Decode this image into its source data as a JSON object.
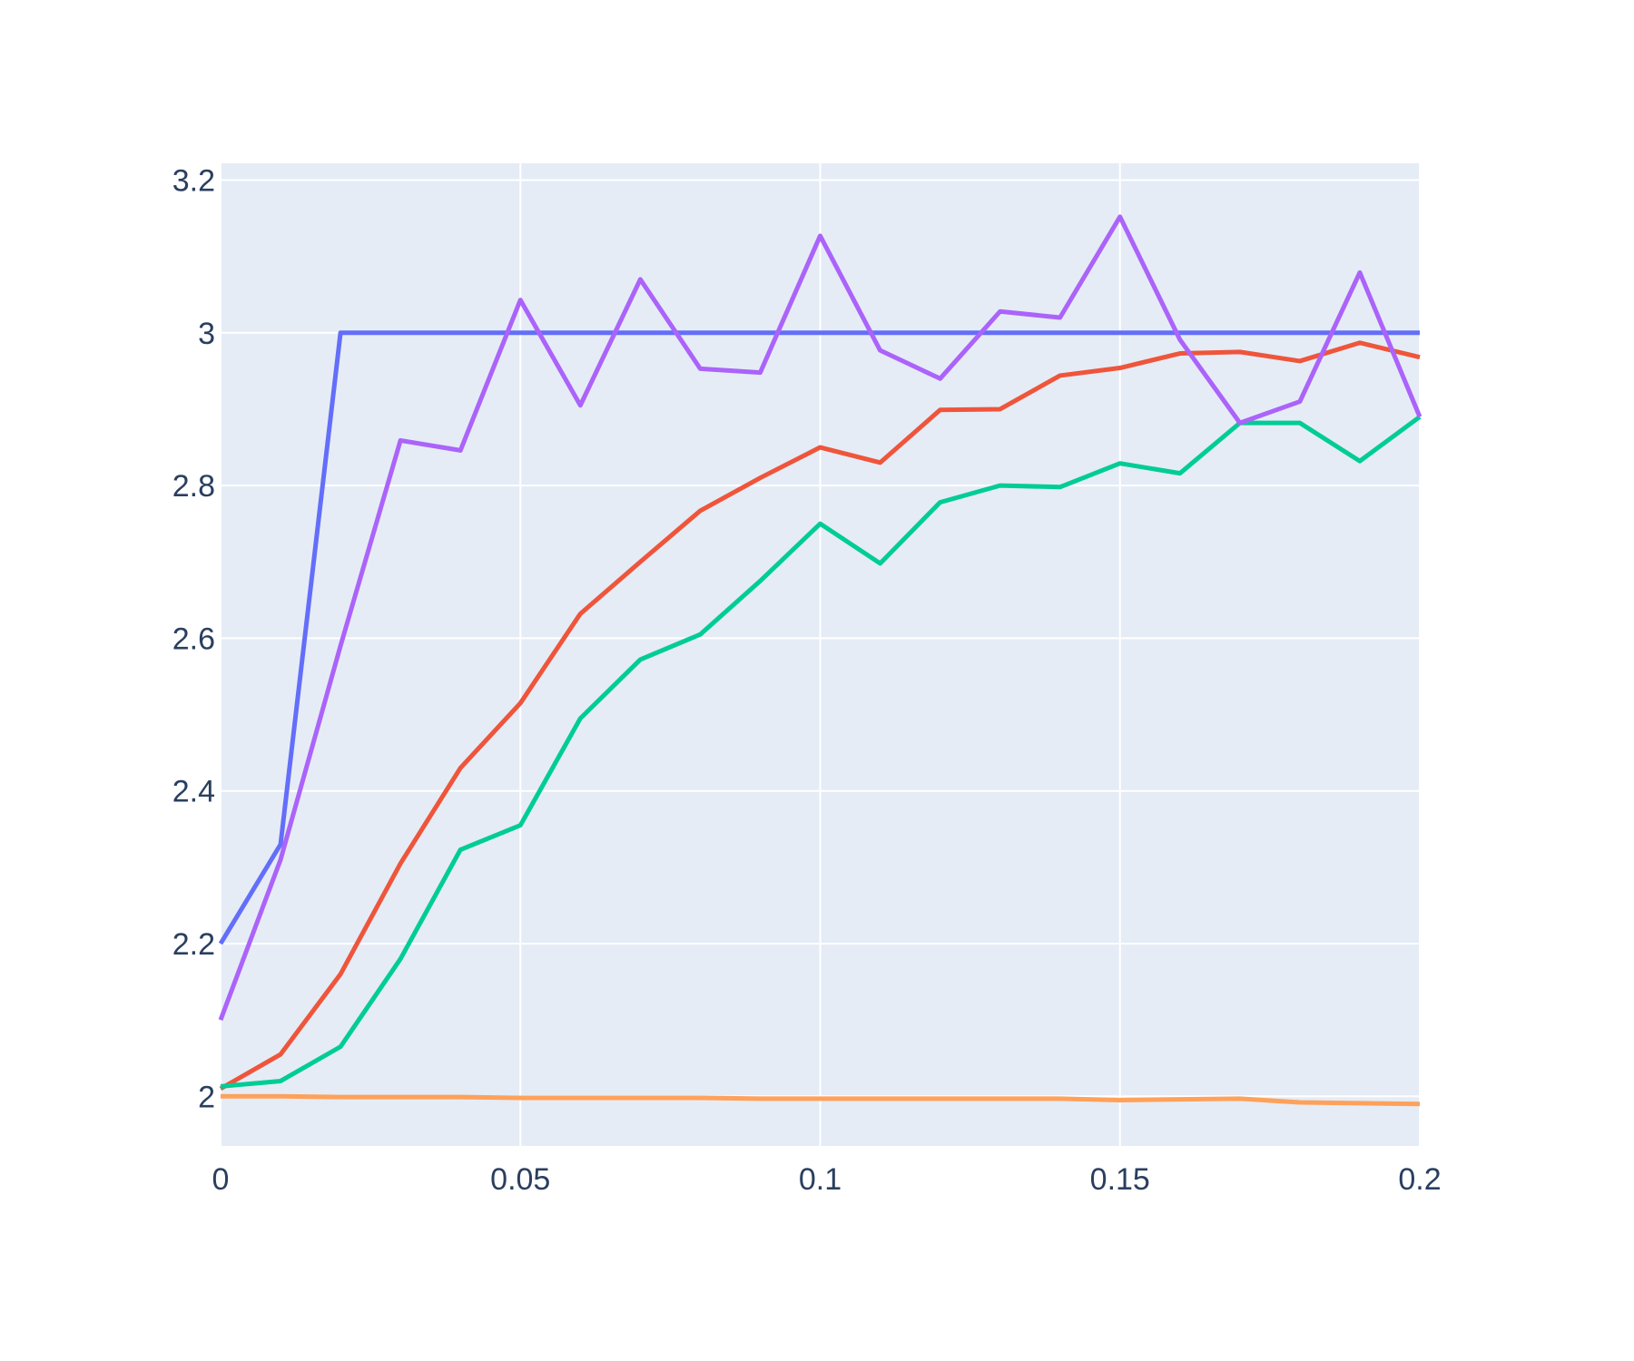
{
  "chart_data": {
    "type": "line",
    "title": "",
    "xlabel": "",
    "ylabel": "",
    "xlim": [
      0,
      0.2
    ],
    "ylim": [
      1.935,
      3.222
    ],
    "x_ticks": [
      0,
      0.05,
      0.1,
      0.15,
      0.2
    ],
    "x_tick_labels": [
      "0",
      "0.05",
      "0.1",
      "0.15",
      "0.2"
    ],
    "y_ticks": [
      2,
      2.2,
      2.4,
      2.6,
      2.8,
      3,
      3.2
    ],
    "y_tick_labels": [
      "2",
      "2.2",
      "2.4",
      "2.6",
      "2.8",
      "3",
      "3.2"
    ],
    "grid": true,
    "plot_background": "#e5ecf6",
    "grid_color": "#ffffff",
    "x": [
      0,
      0.01,
      0.02,
      0.03,
      0.04,
      0.05,
      0.06,
      0.07,
      0.08,
      0.09,
      0.1,
      0.11,
      0.12,
      0.13,
      0.14,
      0.15,
      0.16,
      0.17,
      0.18,
      0.19,
      0.2
    ],
    "series": [
      {
        "color": "#636efa",
        "values": [
          2.2,
          2.33,
          3.0,
          3.0,
          3.0,
          3.0,
          3.0,
          3.0,
          3.0,
          3.0,
          3.0,
          3.0,
          3.0,
          3.0,
          3.0,
          3.0,
          3.0,
          3.0,
          3.0,
          3.0,
          3.0
        ]
      },
      {
        "color": "#ef553b",
        "values": [
          2.01,
          2.055,
          2.16,
          2.305,
          2.43,
          2.515,
          2.632,
          2.7,
          2.767,
          2.81,
          2.85,
          2.83,
          2.899,
          2.9,
          2.944,
          2.954,
          2.973,
          2.975,
          2.963,
          2.987,
          2.968
        ]
      },
      {
        "color": "#00cc96",
        "values": [
          2.013,
          2.02,
          2.065,
          2.18,
          2.323,
          2.355,
          2.495,
          2.572,
          2.605,
          2.675,
          2.75,
          2.698,
          2.778,
          2.8,
          2.798,
          2.829,
          2.816,
          2.882,
          2.882,
          2.832,
          2.89
        ]
      },
      {
        "color": "#ab63fa",
        "values": [
          2.1,
          2.31,
          2.59,
          2.859,
          2.846,
          3.043,
          2.905,
          3.07,
          2.953,
          2.948,
          3.127,
          2.977,
          2.94,
          3.028,
          3.02,
          3.152,
          2.991,
          2.882,
          2.91,
          3.079,
          2.89
        ]
      },
      {
        "color": "#ffa15a",
        "values": [
          2.0,
          2.0,
          1.999,
          1.999,
          1.999,
          1.998,
          1.998,
          1.998,
          1.998,
          1.997,
          1.997,
          1.997,
          1.997,
          1.997,
          1.997,
          1.995,
          1.996,
          1.997,
          1.992,
          1.991,
          1.99
        ]
      }
    ]
  }
}
